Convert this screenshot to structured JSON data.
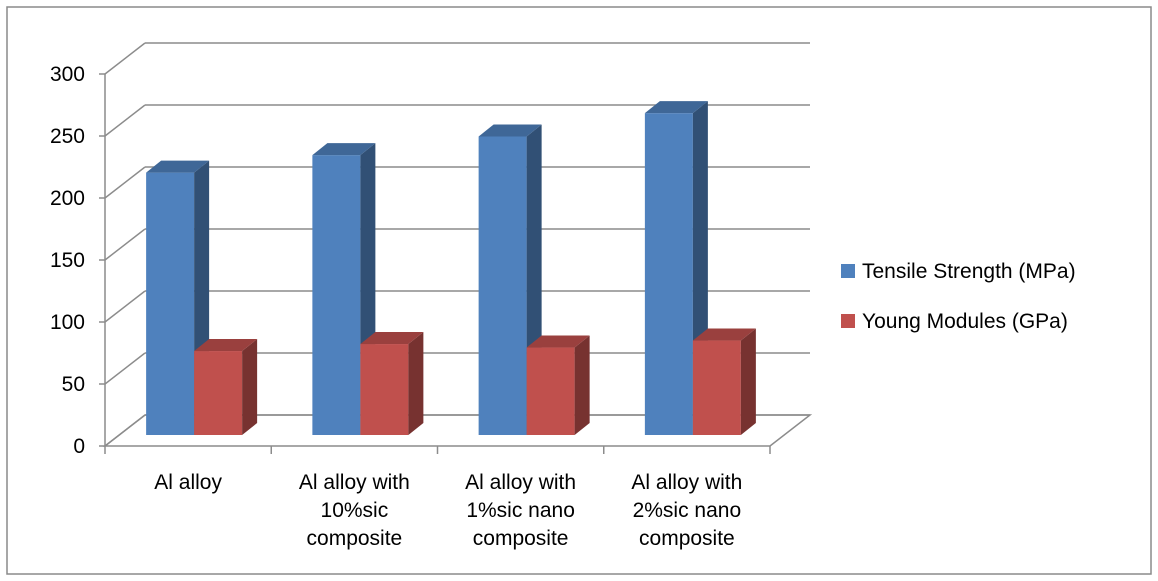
{
  "chart_data": {
    "type": "bar",
    "style": "3d-clustered-column",
    "categories": [
      [
        "Al alloy"
      ],
      [
        "Al alloy with",
        "10%sic",
        "composite"
      ],
      [
        "Al alloy with",
        "1%sic nano",
        "composite"
      ],
      [
        "Al alloy with",
        "2%sic nano",
        "composite"
      ]
    ],
    "series": [
      {
        "name": "Tensile Strength (MPa)",
        "values": [
          225,
          240,
          256,
          276
        ],
        "color": "#4F81BD"
      },
      {
        "name": "Young Modules (GPa)",
        "values": [
          72,
          78,
          75,
          81
        ],
        "color": "#C0504D"
      }
    ],
    "ylim": [
      0,
      300
    ],
    "yticks": [
      0,
      50,
      100,
      150,
      200,
      250,
      300
    ],
    "grid": true,
    "legend": "right"
  }
}
